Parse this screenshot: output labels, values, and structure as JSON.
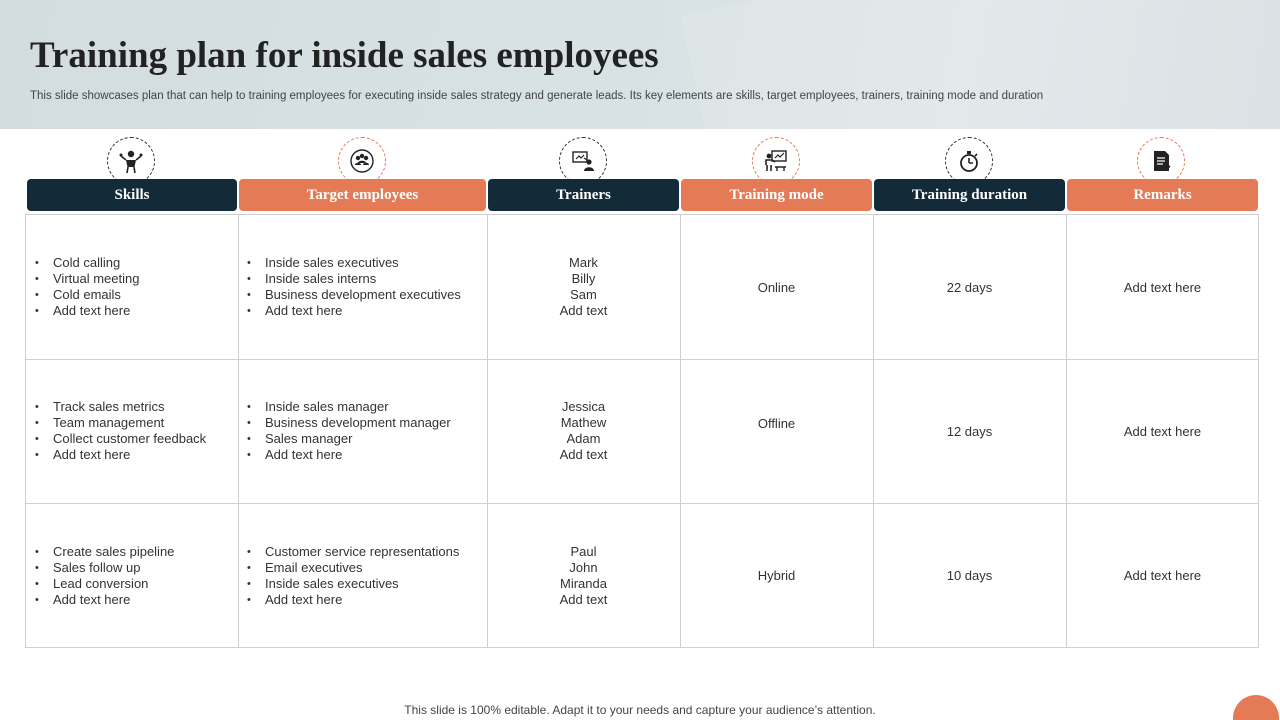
{
  "slide": {
    "title": "Training plan for inside sales employees",
    "subtitle": "This slide showcases plan that can help to training employees for executing inside sales strategy and generate leads. Its key elements are skills, target employees, trainers, training mode and duration",
    "footer": "This slide is 100% editable. Adapt it to your needs and capture your audience’s attention."
  },
  "colors": {
    "dark": "#132b38",
    "accent": "#e47b56"
  },
  "columns": [
    {
      "label": "Skills",
      "icon": "presenter-icon"
    },
    {
      "label": "Target employees",
      "icon": "team-icon"
    },
    {
      "label": "Trainers",
      "icon": "trainer-icon"
    },
    {
      "label": "Training mode",
      "icon": "whiteboard-icon"
    },
    {
      "label": "Training duration",
      "icon": "stopwatch-icon"
    },
    {
      "label": "Remarks",
      "icon": "document-icon"
    }
  ],
  "rows": [
    {
      "skills": [
        "Cold calling",
        "Virtual meeting",
        "Cold emails",
        "Add text here"
      ],
      "targets": [
        "Inside sales executives",
        "Inside sales interns",
        "Business development  executives",
        "Add text here"
      ],
      "trainers": [
        "Mark",
        "Billy",
        "Sam",
        "Add text"
      ],
      "mode": "Online",
      "duration": "22 days",
      "remarks": "Add text here"
    },
    {
      "skills": [
        "Track sales metrics",
        "Team management",
        "Collect customer feedback",
        "Add text here"
      ],
      "targets": [
        "Inside sales manager",
        "Business development  manager",
        "Sales manager",
        "Add text here"
      ],
      "trainers": [
        "Jessica",
        "Mathew",
        "Adam",
        "Add text"
      ],
      "mode": "Offline",
      "duration": "12 days",
      "remarks": "Add text here"
    },
    {
      "skills": [
        "Create sales pipeline",
        "Sales follow up",
        "Lead conversion",
        "Add text here"
      ],
      "targets": [
        "Customer service representations",
        "Email executives",
        "Inside sales executives",
        "Add text here"
      ],
      "trainers": [
        "Paul",
        "John",
        "Miranda",
        "Add text"
      ],
      "mode": "Hybrid",
      "duration": "10 days",
      "remarks": "Add text here"
    }
  ]
}
